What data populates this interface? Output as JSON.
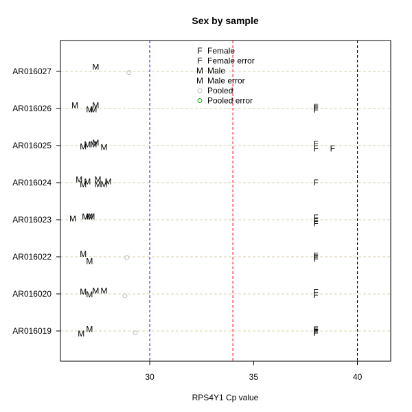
{
  "chart_data": {
    "type": "scatter",
    "title": "Sex by sample",
    "xlabel": "RPS4Y1 Cp value",
    "ylabel": "",
    "xlim": [
      25.7,
      41.6
    ],
    "x_ticks": [
      30,
      35,
      40
    ],
    "x_tick_labels": [
      "30",
      "35",
      "40"
    ],
    "categories": [
      "AR016019",
      "AR016020",
      "AR016022",
      "AR016023",
      "AR016024",
      "AR016025",
      "AR016026",
      "AR016027"
    ],
    "reference_lines": [
      {
        "x": 30,
        "color": "#0000ff",
        "style": "dashed"
      },
      {
        "x": 34,
        "color": "#ff0000",
        "style": "dashed"
      },
      {
        "x": 40,
        "color": "#000000",
        "style": "dashed"
      }
    ],
    "grid": "horizontal dashed",
    "legend_position": "top-center",
    "series": [
      {
        "name": "Female",
        "symbol": "F",
        "color": "#000000",
        "points": [
          {
            "x": 38.0,
            "y": "AR016019",
            "offset": -0.06
          },
          {
            "x": 38.0,
            "y": "AR016019",
            "offset": -0.03
          },
          {
            "x": 38.0,
            "y": "AR016019",
            "offset": 0.0
          },
          {
            "x": 38.0,
            "y": "AR016019",
            "offset": 0.04
          },
          {
            "x": 38.0,
            "y": "AR016020",
            "offset": -0.04
          },
          {
            "x": 38.0,
            "y": "AR016020",
            "offset": 0.05
          },
          {
            "x": 38.0,
            "y": "AR016022",
            "offset": -0.06
          },
          {
            "x": 38.0,
            "y": "AR016022",
            "offset": -0.02
          },
          {
            "x": 38.0,
            "y": "AR016022",
            "offset": 0.03
          },
          {
            "x": 38.0,
            "y": "AR016023",
            "offset": -0.1
          },
          {
            "x": 38.0,
            "y": "AR016023",
            "offset": -0.05
          },
          {
            "x": 38.0,
            "y": "AR016023",
            "offset": 0.06
          },
          {
            "x": 38.0,
            "y": "AR016024",
            "offset": 0.0
          },
          {
            "x": 38.0,
            "y": "AR016025",
            "offset": -0.08
          },
          {
            "x": 38.0,
            "y": "AR016025",
            "offset": 0.05
          },
          {
            "x": 38.8,
            "y": "AR016025",
            "offset": -0.08
          },
          {
            "x": 38.0,
            "y": "AR016026",
            "offset": -0.04
          },
          {
            "x": 38.0,
            "y": "AR016026",
            "offset": 0.0
          },
          {
            "x": 38.0,
            "y": "AR016026",
            "offset": 0.04
          }
        ]
      },
      {
        "name": "Male",
        "symbol": "M",
        "color": "#000000",
        "points": [
          {
            "x": 26.7,
            "y": "AR016019",
            "offset": -0.07
          },
          {
            "x": 27.1,
            "y": "AR016019",
            "offset": 0.05
          },
          {
            "x": 26.8,
            "y": "AR016020",
            "offset": 0.06
          },
          {
            "x": 27.1,
            "y": "AR016020",
            "offset": -0.02
          },
          {
            "x": 27.4,
            "y": "AR016020",
            "offset": 0.08
          },
          {
            "x": 27.8,
            "y": "AR016020",
            "offset": 0.08
          },
          {
            "x": 26.8,
            "y": "AR016022",
            "offset": 0.07
          },
          {
            "x": 27.1,
            "y": "AR016022",
            "offset": -0.12
          },
          {
            "x": 26.3,
            "y": "AR016023",
            "offset": 0.03
          },
          {
            "x": 26.9,
            "y": "AR016023",
            "offset": 0.08
          },
          {
            "x": 27.1,
            "y": "AR016023",
            "offset": 0.08
          },
          {
            "x": 27.2,
            "y": "AR016023",
            "offset": 0.08
          },
          {
            "x": 26.6,
            "y": "AR016024",
            "offset": 0.08
          },
          {
            "x": 26.8,
            "y": "AR016024",
            "offset": -0.05
          },
          {
            "x": 27.0,
            "y": "AR016024",
            "offset": 0.03
          },
          {
            "x": 27.5,
            "y": "AR016024",
            "offset": -0.05
          },
          {
            "x": 27.5,
            "y": "AR016024",
            "offset": 0.08
          },
          {
            "x": 27.8,
            "y": "AR016024",
            "offset": -0.05
          },
          {
            "x": 28.0,
            "y": "AR016024",
            "offset": 0.03
          },
          {
            "x": 26.8,
            "y": "AR016025",
            "offset": -0.03
          },
          {
            "x": 27.0,
            "y": "AR016025",
            "offset": 0.03
          },
          {
            "x": 27.3,
            "y": "AR016025",
            "offset": 0.03
          },
          {
            "x": 27.4,
            "y": "AR016025",
            "offset": 0.07
          },
          {
            "x": 27.8,
            "y": "AR016025",
            "offset": -0.05
          },
          {
            "x": 26.4,
            "y": "AR016026",
            "offset": 0.08
          },
          {
            "x": 27.1,
            "y": "AR016026",
            "offset": -0.03
          },
          {
            "x": 27.3,
            "y": "AR016026",
            "offset": -0.03
          },
          {
            "x": 27.4,
            "y": "AR016026",
            "offset": 0.08
          },
          {
            "x": 27.4,
            "y": "AR016027",
            "offset": 0.12
          }
        ]
      },
      {
        "name": "Pooled",
        "symbol": "circle",
        "color": "#bbbbbb",
        "points": [
          {
            "x": 29.3,
            "y": "AR016019",
            "offset": -0.05
          },
          {
            "x": 28.8,
            "y": "AR016020",
            "offset": -0.05
          },
          {
            "x": 28.9,
            "y": "AR016022",
            "offset": -0.02
          },
          {
            "x": 29.0,
            "y": "AR016027",
            "offset": -0.03
          }
        ]
      }
    ],
    "legend": [
      {
        "symbol": "F",
        "color": "#000000",
        "label": "Female"
      },
      {
        "symbol": "F",
        "color": "#ff0000",
        "label": "Female error"
      },
      {
        "symbol": "M",
        "color": "#000000",
        "label": "Male"
      },
      {
        "symbol": "M",
        "color": "#0000ff",
        "label": "Male error"
      },
      {
        "symbol": "circle",
        "color": "#bbbbbb",
        "label": "Pooled"
      },
      {
        "symbol": "circle",
        "color": "#00bb00",
        "label": "Pooled error"
      }
    ]
  }
}
